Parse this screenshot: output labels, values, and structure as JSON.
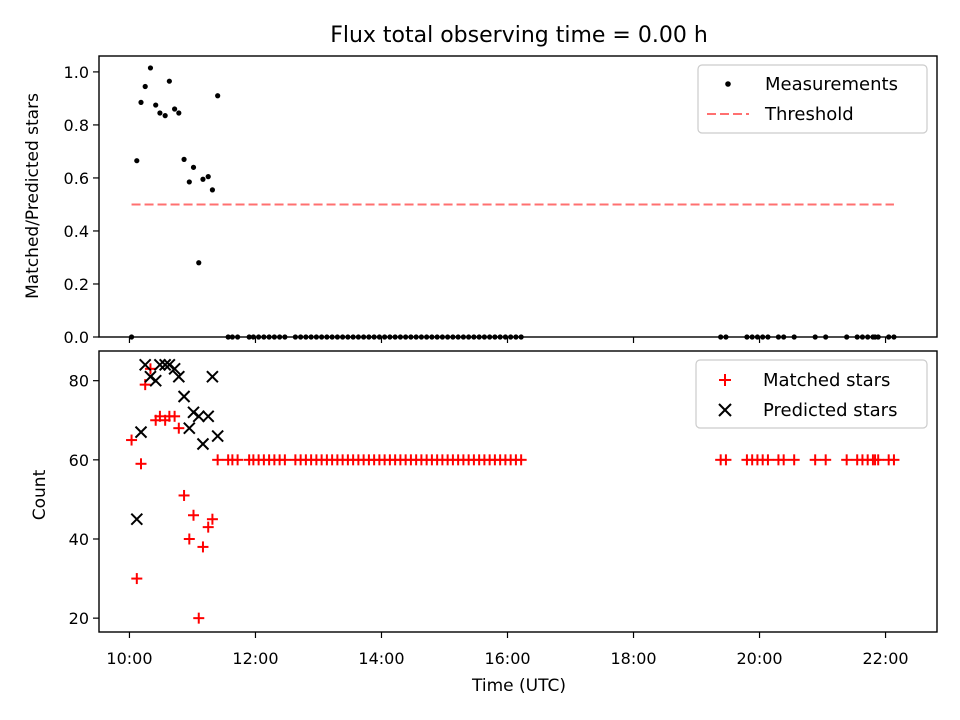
{
  "figure": {
    "title": "Flux total observing time = 0.00 h",
    "xlabel": "Time (UTC)"
  },
  "colors": {
    "black": "#000000",
    "red": "#ff0000",
    "threshold": "#ff7070",
    "frame": "#000000"
  },
  "chart_data": [
    {
      "type": "scatter",
      "panel": "top",
      "ylabel": "Matched/Predicted stars",
      "xlim": [
        "09:31",
        "22:49"
      ],
      "ylim": [
        0,
        1.06
      ],
      "yticks": [
        0.0,
        0.2,
        0.4,
        0.6,
        0.8,
        1.0
      ],
      "ytick_labels": [
        "0.0",
        "0.2",
        "0.4",
        "0.6",
        "0.8",
        "1.0"
      ],
      "legend_position": "upper right",
      "series": [
        {
          "name": "Measurements",
          "marker": "dot",
          "color": "#000000",
          "points": [
            [
              "10:02",
              0.0
            ],
            [
              "10:07",
              0.665
            ],
            [
              "10:11",
              0.885
            ],
            [
              "10:15",
              0.945
            ],
            [
              "10:20",
              1.015
            ],
            [
              "10:25",
              0.875
            ],
            [
              "10:29",
              0.845
            ],
            [
              "10:34",
              0.835
            ],
            [
              "10:38",
              0.965
            ],
            [
              "10:43",
              0.86
            ],
            [
              "10:47",
              0.845
            ],
            [
              "10:52",
              0.67
            ],
            [
              "10:57",
              0.585
            ],
            [
              "11:01",
              0.64
            ],
            [
              "11:06",
              0.28
            ],
            [
              "11:10",
              0.595
            ],
            [
              "11:15",
              0.605
            ],
            [
              "11:19",
              0.555
            ],
            [
              "11:24",
              0.91
            ],
            [
              "11:34",
              0.0
            ],
            [
              "11:38",
              0.0
            ],
            [
              "11:43",
              0.0
            ],
            [
              "11:54",
              0.0
            ],
            [
              "11:58",
              0.0
            ],
            [
              "12:03",
              0.0
            ],
            [
              "12:08",
              0.0
            ],
            [
              "12:13",
              0.0
            ],
            [
              "12:18",
              0.0
            ],
            [
              "12:23",
              0.0
            ],
            [
              "12:28",
              0.0
            ],
            [
              "12:38",
              0.0
            ],
            [
              "12:43",
              0.0
            ],
            [
              "12:48",
              0.0
            ],
            [
              "12:53",
              0.0
            ],
            [
              "12:58",
              0.0
            ],
            [
              "13:03",
              0.0
            ],
            [
              "13:08",
              0.0
            ],
            [
              "13:13",
              0.0
            ],
            [
              "13:18",
              0.0
            ],
            [
              "13:23",
              0.0
            ],
            [
              "13:28",
              0.0
            ],
            [
              "13:33",
              0.0
            ],
            [
              "13:38",
              0.0
            ],
            [
              "13:43",
              0.0
            ],
            [
              "13:48",
              0.0
            ],
            [
              "13:53",
              0.0
            ],
            [
              "13:58",
              0.0
            ],
            [
              "14:03",
              0.0
            ],
            [
              "14:08",
              0.0
            ],
            [
              "14:13",
              0.0
            ],
            [
              "14:18",
              0.0
            ],
            [
              "14:23",
              0.0
            ],
            [
              "14:28",
              0.0
            ],
            [
              "14:33",
              0.0
            ],
            [
              "14:38",
              0.0
            ],
            [
              "14:43",
              0.0
            ],
            [
              "14:48",
              0.0
            ],
            [
              "14:53",
              0.0
            ],
            [
              "14:58",
              0.0
            ],
            [
              "15:03",
              0.0
            ],
            [
              "15:08",
              0.0
            ],
            [
              "15:13",
              0.0
            ],
            [
              "15:18",
              0.0
            ],
            [
              "15:23",
              0.0
            ],
            [
              "15:28",
              0.0
            ],
            [
              "15:33",
              0.0
            ],
            [
              "15:38",
              0.0
            ],
            [
              "15:43",
              0.0
            ],
            [
              "15:48",
              0.0
            ],
            [
              "15:53",
              0.0
            ],
            [
              "15:58",
              0.0
            ],
            [
              "16:03",
              0.0
            ],
            [
              "16:08",
              0.0
            ],
            [
              "16:13",
              0.0
            ],
            [
              "19:23",
              0.0
            ],
            [
              "19:28",
              0.0
            ],
            [
              "19:48",
              0.0
            ],
            [
              "19:53",
              0.0
            ],
            [
              "19:58",
              0.0
            ],
            [
              "20:03",
              0.0
            ],
            [
              "20:08",
              0.0
            ],
            [
              "20:18",
              0.0
            ],
            [
              "20:23",
              0.0
            ],
            [
              "20:33",
              0.0
            ],
            [
              "20:53",
              0.0
            ],
            [
              "21:03",
              0.0
            ],
            [
              "21:23",
              0.0
            ],
            [
              "21:33",
              0.0
            ],
            [
              "21:38",
              0.0
            ],
            [
              "21:43",
              0.0
            ],
            [
              "21:48",
              0.0
            ],
            [
              "21:50",
              0.0
            ],
            [
              "21:53",
              0.0
            ],
            [
              "22:03",
              0.0
            ],
            [
              "22:08",
              0.0
            ]
          ]
        },
        {
          "name": "Threshold",
          "marker": "dashed-line",
          "color": "#ff7070",
          "x": [
            "10:02",
            "22:08"
          ],
          "y": [
            0.5,
            0.5
          ]
        }
      ]
    },
    {
      "type": "scatter",
      "panel": "bottom",
      "ylabel": "Count",
      "xlim": [
        "09:31",
        "22:49"
      ],
      "ylim": [
        16.5,
        87.5
      ],
      "yticks": [
        20,
        40,
        60,
        80
      ],
      "ytick_labels": [
        "20",
        "40",
        "60",
        "80"
      ],
      "xticks": [
        "10:00",
        "12:00",
        "14:00",
        "16:00",
        "18:00",
        "20:00",
        "22:00"
      ],
      "xtick_labels": [
        "10:00",
        "12:00",
        "14:00",
        "16:00",
        "18:00",
        "20:00",
        "22:00"
      ],
      "legend_position": "upper right",
      "series": [
        {
          "name": "Matched stars",
          "marker": "plus",
          "color": "#ff0000",
          "points": [
            [
              "10:02",
              65
            ],
            [
              "10:07",
              30
            ],
            [
              "10:11",
              59
            ],
            [
              "10:15",
              79
            ],
            [
              "10:20",
              83
            ],
            [
              "10:25",
              70
            ],
            [
              "10:29",
              71
            ],
            [
              "10:34",
              70
            ],
            [
              "10:38",
              71
            ],
            [
              "10:43",
              71
            ],
            [
              "10:47",
              68
            ],
            [
              "10:52",
              51
            ],
            [
              "10:57",
              40
            ],
            [
              "11:01",
              46
            ],
            [
              "11:06",
              20
            ],
            [
              "11:10",
              38
            ],
            [
              "11:15",
              43
            ],
            [
              "11:19",
              45
            ],
            [
              "11:24",
              60
            ],
            [
              "11:34",
              60
            ],
            [
              "11:38",
              60
            ],
            [
              "11:43",
              60
            ],
            [
              "11:54",
              60
            ],
            [
              "11:58",
              60
            ],
            [
              "12:03",
              60
            ],
            [
              "12:08",
              60
            ],
            [
              "12:13",
              60
            ],
            [
              "12:18",
              60
            ],
            [
              "12:23",
              60
            ],
            [
              "12:28",
              60
            ],
            [
              "12:38",
              60
            ],
            [
              "12:43",
              60
            ],
            [
              "12:48",
              60
            ],
            [
              "12:53",
              60
            ],
            [
              "12:58",
              60
            ],
            [
              "13:03",
              60
            ],
            [
              "13:08",
              60
            ],
            [
              "13:13",
              60
            ],
            [
              "13:18",
              60
            ],
            [
              "13:23",
              60
            ],
            [
              "13:28",
              60
            ],
            [
              "13:33",
              60
            ],
            [
              "13:38",
              60
            ],
            [
              "13:43",
              60
            ],
            [
              "13:48",
              60
            ],
            [
              "13:53",
              60
            ],
            [
              "13:58",
              60
            ],
            [
              "14:03",
              60
            ],
            [
              "14:08",
              60
            ],
            [
              "14:13",
              60
            ],
            [
              "14:18",
              60
            ],
            [
              "14:23",
              60
            ],
            [
              "14:28",
              60
            ],
            [
              "14:33",
              60
            ],
            [
              "14:38",
              60
            ],
            [
              "14:43",
              60
            ],
            [
              "14:48",
              60
            ],
            [
              "14:53",
              60
            ],
            [
              "14:58",
              60
            ],
            [
              "15:03",
              60
            ],
            [
              "15:08",
              60
            ],
            [
              "15:13",
              60
            ],
            [
              "15:18",
              60
            ],
            [
              "15:23",
              60
            ],
            [
              "15:28",
              60
            ],
            [
              "15:33",
              60
            ],
            [
              "15:38",
              60
            ],
            [
              "15:43",
              60
            ],
            [
              "15:48",
              60
            ],
            [
              "15:53",
              60
            ],
            [
              "15:58",
              60
            ],
            [
              "16:03",
              60
            ],
            [
              "16:08",
              60
            ],
            [
              "16:13",
              60
            ],
            [
              "19:23",
              60
            ],
            [
              "19:28",
              60
            ],
            [
              "19:48",
              60
            ],
            [
              "19:53",
              60
            ],
            [
              "19:58",
              60
            ],
            [
              "20:03",
              60
            ],
            [
              "20:08",
              60
            ],
            [
              "20:18",
              60
            ],
            [
              "20:23",
              60
            ],
            [
              "20:33",
              60
            ],
            [
              "20:53",
              60
            ],
            [
              "21:03",
              60
            ],
            [
              "21:23",
              60
            ],
            [
              "21:33",
              60
            ],
            [
              "21:38",
              60
            ],
            [
              "21:43",
              60
            ],
            [
              "21:48",
              60
            ],
            [
              "21:50",
              60
            ],
            [
              "21:53",
              60
            ],
            [
              "22:03",
              60
            ],
            [
              "22:08",
              60
            ]
          ]
        },
        {
          "name": "Predicted stars",
          "marker": "x",
          "color": "#000000",
          "points": [
            [
              "10:07",
              45
            ],
            [
              "10:11",
              67
            ],
            [
              "10:15",
              84
            ],
            [
              "10:20",
              81
            ],
            [
              "10:25",
              80
            ],
            [
              "10:29",
              84
            ],
            [
              "10:34",
              84
            ],
            [
              "10:38",
              84
            ],
            [
              "10:43",
              83
            ],
            [
              "10:47",
              81
            ],
            [
              "10:52",
              76
            ],
            [
              "10:57",
              68
            ],
            [
              "11:01",
              72
            ],
            [
              "11:06",
              71
            ],
            [
              "11:10",
              64
            ],
            [
              "11:15",
              71
            ],
            [
              "11:19",
              81
            ],
            [
              "11:24",
              66
            ]
          ]
        }
      ]
    }
  ]
}
